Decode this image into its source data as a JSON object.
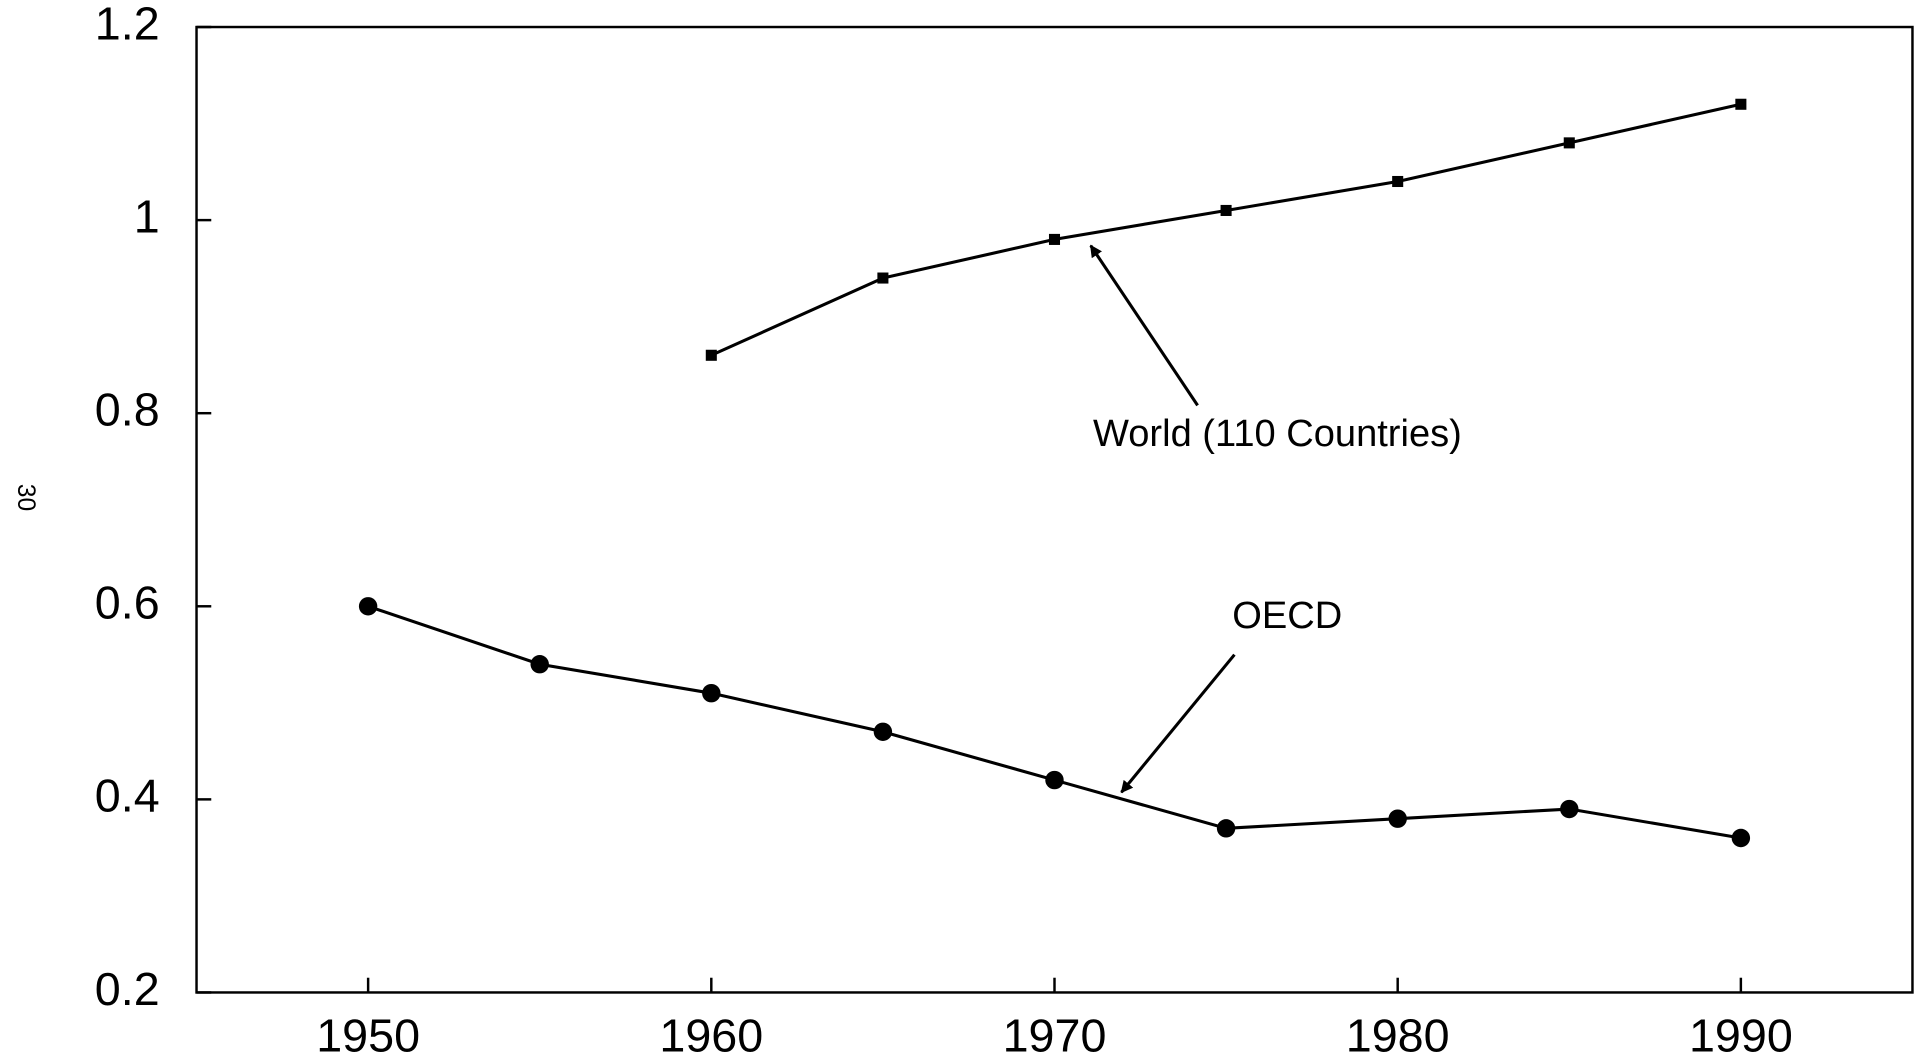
{
  "chart_data": {
    "type": "line",
    "x": [
      1950,
      1955,
      1960,
      1965,
      1970,
      1975,
      1980,
      1985,
      1990
    ],
    "series": [
      {
        "name": "World (110 Countries)",
        "color": "#000000",
        "marker": "square",
        "values": [
          null,
          null,
          0.86,
          0.94,
          0.98,
          1.01,
          1.04,
          1.08,
          1.12
        ]
      },
      {
        "name": "OECD",
        "color": "#000000",
        "marker": "circle",
        "values": [
          0.6,
          0.54,
          0.51,
          0.47,
          0.42,
          0.37,
          0.38,
          0.39,
          0.36
        ]
      }
    ],
    "xlim": [
      1945,
      1995
    ],
    "xticks": [
      1950,
      1960,
      1970,
      1980,
      1990
    ],
    "ylim": [
      0.2,
      1.2
    ],
    "yticks": [
      0.2,
      0.4,
      0.6,
      0.8,
      1,
      1.2
    ],
    "grid": false,
    "legend": "annotations",
    "page_number": "30"
  }
}
